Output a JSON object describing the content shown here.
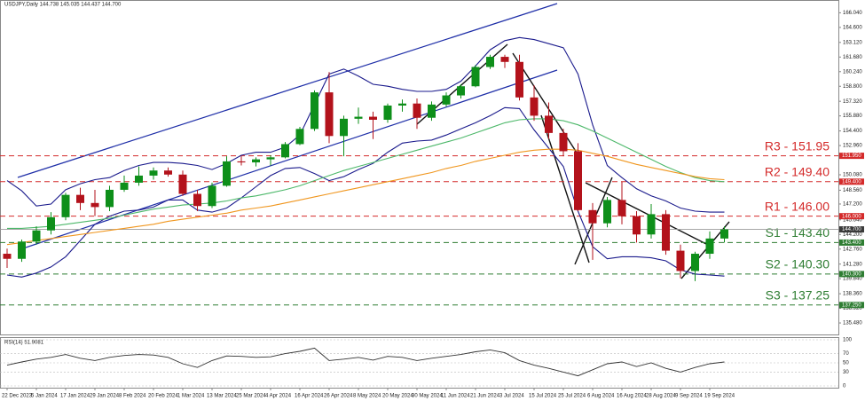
{
  "chart_data": [
    {
      "type": "candlestick",
      "title": "USDJPY,Daily 144.738 145.035 144.437 144.700",
      "categories": [
        "22 Dec 2023",
        null,
        "5 Jan 2024",
        null,
        "17 Jan 2024",
        null,
        "29 Jan 2024",
        null,
        "8 Feb 2024",
        null,
        "20 Feb 2024",
        null,
        "1 Mar 2024",
        null,
        "13 Mar 2024",
        null,
        "25 Mar 2024",
        null,
        "4 Apr 2024",
        null,
        "16 Apr 2024",
        null,
        "26 Apr 2024",
        null,
        "8 May 2024",
        null,
        "20 May 2024",
        null,
        "30 May 2024",
        null,
        "11 Jun 2024",
        null,
        "21 Jun 2024",
        null,
        "3 Jul 2024",
        null,
        "15 Jul 2024",
        null,
        "25 Jul 2024",
        null,
        "6 Aug 2024",
        null,
        "16 Aug 2024",
        null,
        "28 Aug 2024",
        null,
        "9 Sep 2024",
        null,
        "19 Sep 2024",
        null
      ],
      "open": [
        142.3,
        141.8,
        143.5,
        144.6,
        145.9,
        148.1,
        147.3,
        146.9,
        148.6,
        149.3,
        150.0,
        150.5,
        150.1,
        148.2,
        147.0,
        149.0,
        151.4,
        151.3,
        151.6,
        151.8,
        153.1,
        154.6,
        158.2,
        153.9,
        155.6,
        155.8,
        155.5,
        156.9,
        157.1,
        155.7,
        157.0,
        157.9,
        158.8,
        160.7,
        161.7,
        161.2,
        157.7,
        155.9,
        154.2,
        152.4,
        146.6,
        145.3,
        147.6,
        146.0,
        144.2,
        146.2,
        142.6,
        140.6,
        142.3,
        143.8
      ],
      "high": [
        142.8,
        143.7,
        145.0,
        146.4,
        148.3,
        148.8,
        148.6,
        149.0,
        150.0,
        150.9,
        150.8,
        150.8,
        150.5,
        148.6,
        149.3,
        151.9,
        151.9,
        151.8,
        152.0,
        153.3,
        154.8,
        158.4,
        160.2,
        155.9,
        156.7,
        156.3,
        157.1,
        157.5,
        157.6,
        157.3,
        158.2,
        159.0,
        160.9,
        161.9,
        161.9,
        161.9,
        158.9,
        157.2,
        154.6,
        153.2,
        147.3,
        147.9,
        149.4,
        146.5,
        147.2,
        146.6,
        143.2,
        142.5,
        144.5,
        145.0
      ],
      "low": [
        140.9,
        141.5,
        143.2,
        144.2,
        145.6,
        146.6,
        146.0,
        146.5,
        148.4,
        149.0,
        149.6,
        149.9,
        148.0,
        146.5,
        146.8,
        148.9,
        151.0,
        150.9,
        151.0,
        151.7,
        153.0,
        154.4,
        153.2,
        151.9,
        155.1,
        153.6,
        155.2,
        156.3,
        154.6,
        155.4,
        156.8,
        157.6,
        158.7,
        160.5,
        160.6,
        157.4,
        155.4,
        153.6,
        151.9,
        146.5,
        141.7,
        144.9,
        145.2,
        143.4,
        143.8,
        142.2,
        139.9,
        139.6,
        141.8,
        143.4
      ],
      "close": [
        141.8,
        143.5,
        144.6,
        145.9,
        148.1,
        147.3,
        146.9,
        148.6,
        149.3,
        150.0,
        150.5,
        150.1,
        148.2,
        147.0,
        149.0,
        151.4,
        151.3,
        151.6,
        151.8,
        153.1,
        154.6,
        158.2,
        153.9,
        155.6,
        155.8,
        155.5,
        156.9,
        157.1,
        155.7,
        157.0,
        157.9,
        158.8,
        160.7,
        161.7,
        161.2,
        157.7,
        155.9,
        154.2,
        152.4,
        146.6,
        145.3,
        147.6,
        146.0,
        144.2,
        146.2,
        142.6,
        140.6,
        142.3,
        143.8,
        144.7
      ],
      "up_color": "#0e8f1a",
      "down_color": "#b3121b",
      "overlays": [
        {
          "color": "#1a1a8c",
          "values": [
            149.5,
            148.5,
            147.0,
            147.2,
            148.6,
            149.2,
            149.6,
            149.8,
            150.5,
            151.0,
            151.3,
            151.3,
            151.2,
            151.0,
            150.6,
            151.2,
            152.0,
            152.3,
            152.3,
            152.8,
            154.0,
            157.0,
            160.0,
            160.5,
            159.8,
            159.0,
            158.8,
            158.5,
            158.3,
            158.3,
            158.5,
            159.3,
            160.8,
            162.4,
            163.3,
            163.6,
            163.4,
            163.0,
            162.6,
            160.0,
            155.0,
            151.0,
            149.8,
            148.7,
            148.0,
            147.5,
            146.8,
            146.5,
            146.4,
            146.4
          ]
        },
        {
          "color": "#1a1a8c",
          "values": [
            140.2,
            140.0,
            140.4,
            141.0,
            142.0,
            143.6,
            145.2,
            146.0,
            146.5,
            146.6,
            146.9,
            147.6,
            147.6,
            146.6,
            146.4,
            146.8,
            147.8,
            148.9,
            150.0,
            150.7,
            150.8,
            150.2,
            149.5,
            149.9,
            150.6,
            151.2,
            152.3,
            153.2,
            153.4,
            153.5,
            154.0,
            154.6,
            155.2,
            155.9,
            156.7,
            156.6,
            154.5,
            152.7,
            150.9,
            146.5,
            143.0,
            141.8,
            142.0,
            142.0,
            141.9,
            141.6,
            140.7,
            140.3,
            140.2,
            140.1
          ]
        },
        {
          "color": "#4db86a",
          "values": [
            144.8,
            144.8,
            144.9,
            145.0,
            145.2,
            145.4,
            145.6,
            145.8,
            146.1,
            146.4,
            146.7,
            146.9,
            147.1,
            147.2,
            147.3,
            147.5,
            147.8,
            148.0,
            148.3,
            148.6,
            149.0,
            149.5,
            150.0,
            150.5,
            150.9,
            151.3,
            151.7,
            152.1,
            152.5,
            152.9,
            153.3,
            153.7,
            154.2,
            154.7,
            155.2,
            155.5,
            155.6,
            155.6,
            155.4,
            155.0,
            154.4,
            153.7,
            153.0,
            152.3,
            151.6,
            150.9,
            150.3,
            149.8,
            149.5,
            149.4
          ]
        },
        {
          "color": "#f0961e",
          "values": [
            143.2,
            143.4,
            143.6,
            143.8,
            144.0,
            144.2,
            144.4,
            144.6,
            144.8,
            145.0,
            145.2,
            145.5,
            145.7,
            145.9,
            146.1,
            146.3,
            146.6,
            146.8,
            147.0,
            147.3,
            147.6,
            147.9,
            148.2,
            148.5,
            148.8,
            149.1,
            149.4,
            149.7,
            150.0,
            150.3,
            150.7,
            151.0,
            151.4,
            151.7,
            152.0,
            152.3,
            152.5,
            152.6,
            152.6,
            152.5,
            152.2,
            151.9,
            151.5,
            151.1,
            150.8,
            150.5,
            150.2,
            149.9,
            149.7,
            149.6
          ]
        }
      ],
      "ylim": [
        134.26,
        167.3
      ],
      "yticks": [
        {
          "value": 135.48,
          "label": "135.480"
        },
        {
          "value": 136.92,
          "label": "136.920"
        },
        {
          "value": 138.36,
          "label": "138.360"
        },
        {
          "value": 139.84,
          "label": "139.840"
        },
        {
          "value": 141.28,
          "label": "141.280"
        },
        {
          "value": 142.76,
          "label": "142.760"
        },
        {
          "value": 144.2,
          "label": "144.200"
        },
        {
          "value": 145.64,
          "label": "145.640"
        },
        {
          "value": 147.2,
          "label": "147.200"
        },
        {
          "value": 148.56,
          "label": "148.560"
        },
        {
          "value": 150.08,
          "label": "150.080"
        },
        {
          "value": 152.96,
          "label": "152.960"
        },
        {
          "value": 154.4,
          "label": "154.400"
        },
        {
          "value": 155.88,
          "label": "155.880"
        },
        {
          "value": 157.32,
          "label": "157.320"
        },
        {
          "value": 158.8,
          "label": "158.800"
        },
        {
          "value": 160.24,
          "label": "160.240"
        },
        {
          "value": 161.68,
          "label": "161.680"
        },
        {
          "value": 163.12,
          "label": "163.120"
        },
        {
          "value": 164.6,
          "label": "164.600"
        },
        {
          "value": 166.04,
          "label": "166.040"
        }
      ],
      "current": {
        "value": 144.7,
        "label": "144.700",
        "color": "#3a3a3a"
      },
      "levels": [
        {
          "label": "R3 - 151.95",
          "value": 151.95,
          "axis_label": "151.950",
          "color": "#d42a2a"
        },
        {
          "label": "R2 - 149.40",
          "value": 149.4,
          "axis_label": "149.400",
          "color": "#d42a2a"
        },
        {
          "label": "R1 - 146.00",
          "value": 146.0,
          "axis_label": "146.000",
          "color": "#d42a2a"
        },
        {
          "label": "S1 - 143.40",
          "value": 143.4,
          "axis_label": "143.400",
          "color": "#2e7d32"
        },
        {
          "label": "S2 - 140.30",
          "value": 140.3,
          "axis_label": "140.300",
          "color": "#2e7d32"
        },
        {
          "label": "S3 - 137.25",
          "value": 137.25,
          "axis_label": "137.250",
          "color": "#2e7d32"
        }
      ]
    },
    {
      "type": "line",
      "title": "RSI(14) 51.9081",
      "color": "#333333",
      "values": [
        45,
        52,
        58,
        62,
        68,
        60,
        55,
        62,
        66,
        68,
        67,
        62,
        48,
        40,
        55,
        65,
        64,
        62,
        63,
        70,
        75,
        82,
        55,
        58,
        62,
        56,
        64,
        62,
        55,
        60,
        64,
        68,
        74,
        78,
        72,
        55,
        45,
        38,
        30,
        22,
        35,
        48,
        52,
        42,
        50,
        38,
        30,
        40,
        48,
        52
      ],
      "ylim": [
        0,
        100
      ],
      "yticks": [
        0,
        30,
        50,
        70,
        100
      ]
    }
  ]
}
